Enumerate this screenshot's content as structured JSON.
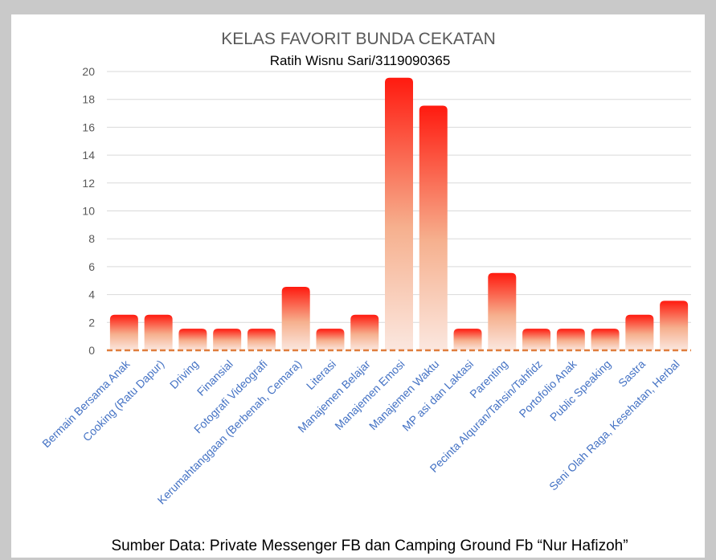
{
  "chart_data": {
    "type": "bar",
    "title": "KELAS FAVORIT BUNDA CEKATAN",
    "subtitle": "Ratih Wisnu Sari/3119090365",
    "footer": "Sumber Data: Private Messenger FB dan Camping Ground Fb “Nur Hafizoh”",
    "categories": [
      "Bermain Bersama Anak",
      "Cooking (Ratu Dapur)",
      "Driving",
      "Finansial",
      "Fotografi Videografi",
      "Kerumahtanggaan (Berbenah, Cemara)",
      "Literasi",
      "Manajemen Belajar",
      "Manajemen Emosi",
      "Manajemen Waktu",
      "MP asi dan Laktasi",
      "Parenting",
      "Pecinta Alquran/Tahsin/Tahfidz",
      "Portofolio Anak",
      "Public Speaking",
      "Sastra",
      "Seni Olah Raga, Kesehatan, Herbal"
    ],
    "values": [
      2,
      2,
      1,
      1,
      1,
      4,
      1,
      2,
      19,
      17,
      1,
      5,
      1,
      1,
      1,
      2,
      3
    ],
    "ylim": [
      0,
      20
    ],
    "yticks": [
      "0",
      "2",
      "4",
      "6",
      "8",
      "10",
      "12",
      "14",
      "16",
      "18",
      "20"
    ],
    "grid": true,
    "colors": {
      "bar_top": "#ff1a0f",
      "bar_bottom": "#fbe7df",
      "baseline": "#e07d3c",
      "grid": "#d9d9d9",
      "title": "#595959",
      "tick": "#595959",
      "category": "#4472c4"
    }
  }
}
